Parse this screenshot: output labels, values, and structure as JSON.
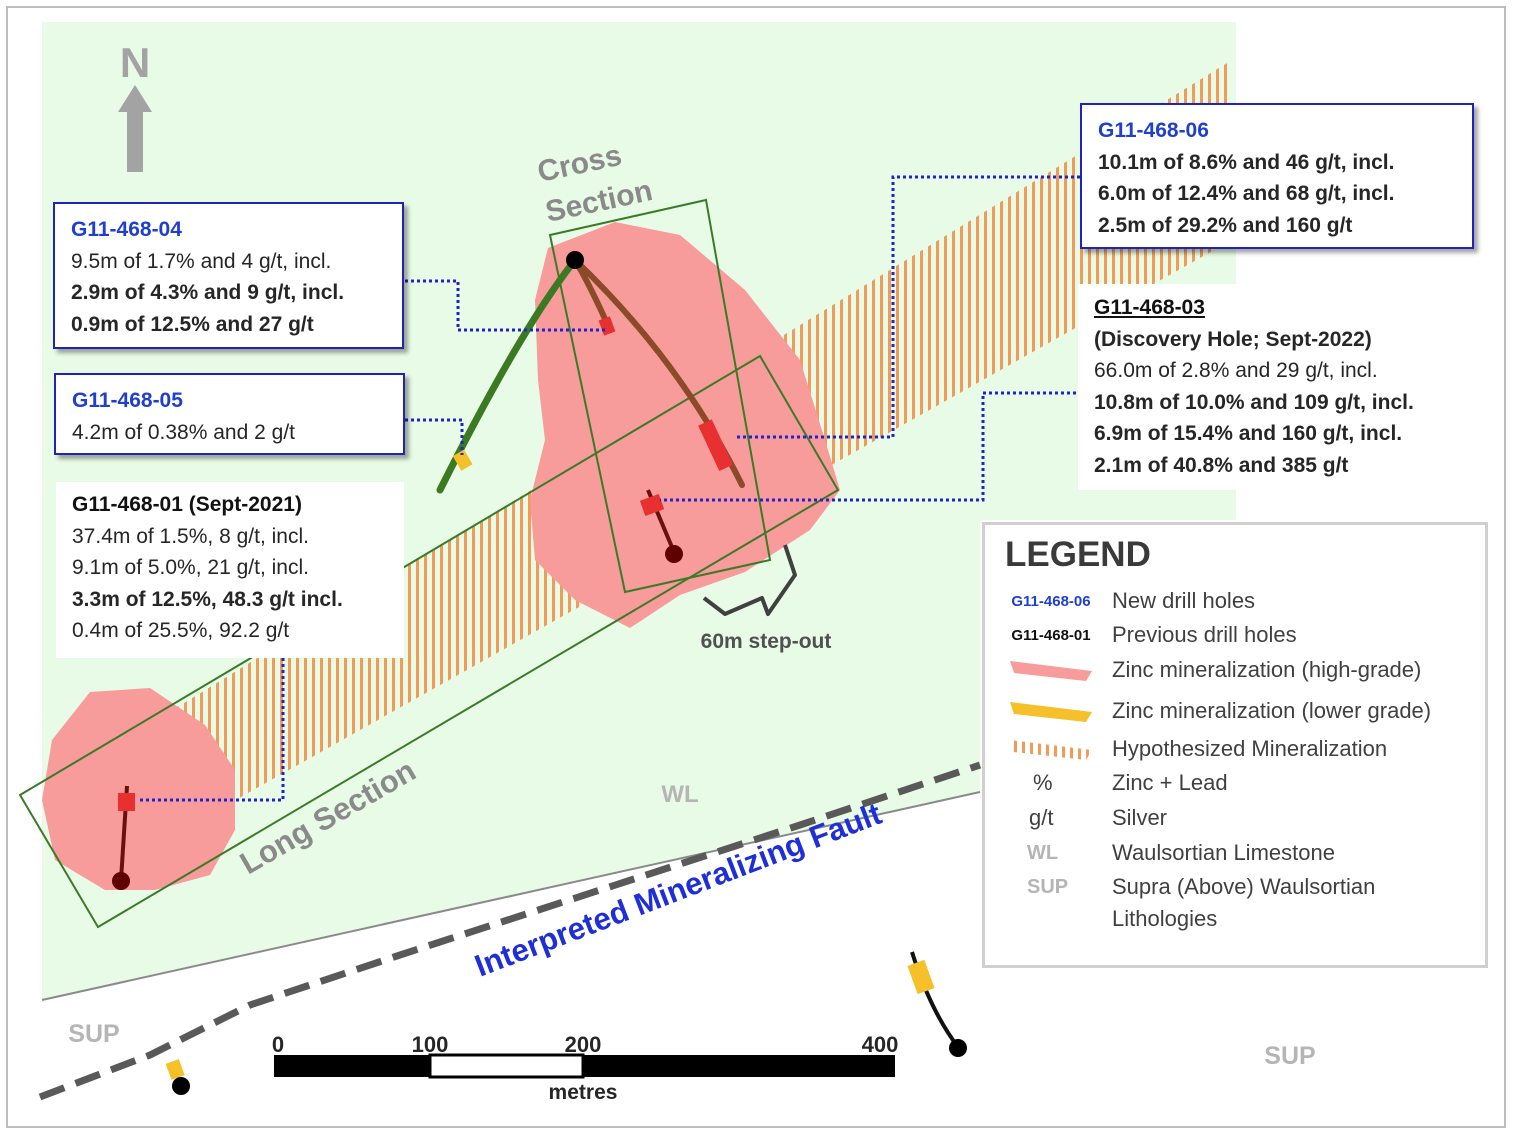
{
  "north_arrow": {
    "letter": "N"
  },
  "section_labels": {
    "cross_line1": "Cross",
    "cross_line2": "Section",
    "long": "Long Section"
  },
  "fault_label": "Interpreted Mineralizing Fault",
  "step_out_label": "60m step-out",
  "unit_labels": {
    "wl": "WL",
    "sup_left": "SUP",
    "sup_right": "SUP"
  },
  "scale_bar": {
    "ticks": [
      "0",
      "100",
      "200",
      "400"
    ],
    "unit": "metres"
  },
  "callouts": {
    "h04": {
      "title": "G11-468-04",
      "lines": [
        "9.5m of 1.7% and 4 g/t, incl.",
        "2.9m of 4.3% and 9 g/t, incl.",
        "0.9m of 12.5% and 27 g/t"
      ]
    },
    "h05": {
      "title": "G11-468-05",
      "lines": [
        "4.2m of 0.38% and 2 g/t"
      ]
    },
    "h01": {
      "title": "G11-468-01 (Sept-2021)",
      "lines": [
        "37.4m of 1.5%, 8 g/t, incl.",
        "9.1m of 5.0%, 21 g/t, incl.",
        "3.3m of 12.5%, 48.3 g/t incl.",
        "0.4m of 25.5%, 92.2 g/t"
      ]
    },
    "h06": {
      "title": "G11-468-06",
      "lines": [
        "10.1m of 8.6% and 46 g/t, incl.",
        "6.0m of 12.4% and 68 g/t, incl.",
        "2.5m of 29.2% and 160 g/t"
      ]
    },
    "h03": {
      "title": "G11-468-03",
      "subtitle": "(Discovery Hole; Sept-2022)",
      "lines": [
        "66.0m of 2.8% and 29 g/t, incl.",
        "10.8m of 10.0% and 109 g/t, incl.",
        "6.9m of 15.4% and 160 g/t, incl.",
        "2.1m of 40.8% and 385 g/t"
      ]
    }
  },
  "legend": {
    "title": "LEGEND",
    "rows": [
      {
        "symbol": "G11-468-06",
        "label": "New drill holes"
      },
      {
        "symbol": "G11-468-01",
        "label": "Previous drill holes"
      },
      {
        "symbol": "pink-swatch",
        "label": "Zinc mineralization (high-grade)"
      },
      {
        "symbol": "yellow-swatch",
        "label": "Zinc mineralization  (lower grade)"
      },
      {
        "symbol": "hatch-swatch",
        "label": "Hypothesized Mineralization"
      },
      {
        "symbol": "%",
        "label": "Zinc + Lead"
      },
      {
        "symbol": "g/t",
        "label": "Silver"
      },
      {
        "symbol": "WL",
        "label": "Waulsortian Limestone"
      },
      {
        "symbol": "SUP",
        "label": "Supra (Above) Waulsortian",
        "label2": "Lithologies"
      }
    ]
  },
  "colors": {
    "wl_zone": "#e8fbe6",
    "high_grade": "#f79b9b",
    "lower_grade": "#f5c02a",
    "hatch": "#f29a58",
    "new_hole_title": "#1f3fcf",
    "fault_label": "#1f2fd8",
    "section_box": "#3a7a28",
    "fault_line": "#595959"
  }
}
